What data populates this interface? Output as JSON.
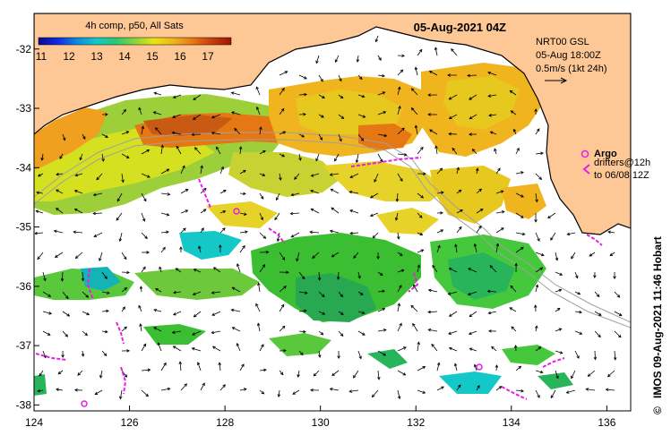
{
  "title": "4h comp, p50, All Sats",
  "date": "05-Aug-2021 04Z",
  "colorbar": {
    "ticks": [
      "11",
      "12",
      "13",
      "14",
      "15",
      "16",
      "17"
    ],
    "colors": [
      "#0a0a8c",
      "#1428e6",
      "#0a8cdc",
      "#14c8c8",
      "#28c878",
      "#8cd23c",
      "#e6e614",
      "#f0b41e",
      "#e67814",
      "#c83c0a",
      "#a01408"
    ]
  },
  "current_info": {
    "line1": "NRT00 GSL",
    "line2": "05-Aug 18:00Z",
    "line3": "0.5m/s (1kt 24h)"
  },
  "legend": {
    "argo": "Argo",
    "drifters_line1": "drifters@12h",
    "drifters_line2": "to 06/08 12Z"
  },
  "side_label": "IMOS 09-Aug-2021 11:46 Hobart",
  "copyright_symbol": "©",
  "axes": {
    "x_ticks": [
      "124",
      "126",
      "128",
      "130",
      "132",
      "134",
      "136"
    ],
    "y_ticks": [
      "-32",
      "-33",
      "-34",
      "-35",
      "-36",
      "-37",
      "-38"
    ],
    "lon_range": [
      124,
      136.5
    ],
    "lat_range": [
      -38.1,
      -31.4
    ]
  },
  "colors": {
    "land": "#fdc896",
    "water": "#ffffff",
    "argo": "#e61ee6",
    "drifter": "#e61ee6",
    "arrow": "#000000",
    "shelf": "#969696"
  }
}
